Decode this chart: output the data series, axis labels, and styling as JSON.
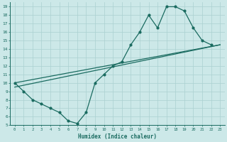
{
  "xlabel": "Humidex (Indice chaleur)",
  "ylabel": "",
  "bg_color": "#cce8e8",
  "line_color": "#1a6b60",
  "grid_color": "#aad0d0",
  "xlim": [
    -0.5,
    23.5
  ],
  "ylim": [
    5,
    19.5
  ],
  "xticks": [
    0,
    1,
    2,
    3,
    4,
    5,
    6,
    7,
    8,
    9,
    10,
    11,
    12,
    13,
    14,
    15,
    16,
    17,
    18,
    19,
    20,
    21,
    22,
    23
  ],
  "yticks": [
    5,
    6,
    7,
    8,
    9,
    10,
    11,
    12,
    13,
    14,
    15,
    16,
    17,
    18,
    19
  ],
  "line1_x": [
    0,
    1,
    2,
    3,
    4,
    5,
    6,
    7,
    8,
    9,
    10,
    11,
    12,
    13,
    14,
    15,
    16,
    17,
    18,
    19,
    20,
    21,
    22
  ],
  "line1_y": [
    10,
    9,
    8,
    7.5,
    7,
    6.5,
    5.5,
    5.2,
    6.5,
    10,
    11,
    12,
    12.5,
    14.5,
    16,
    18,
    16.5,
    19,
    19,
    18.5,
    16.5,
    15,
    14.5
  ],
  "line2_x": [
    0,
    23
  ],
  "line2_y": [
    10,
    14.5
  ],
  "line3_x": [
    0,
    23
  ],
  "line3_y": [
    9.5,
    14.5
  ],
  "marker_size": 2.0,
  "line_width": 0.9
}
